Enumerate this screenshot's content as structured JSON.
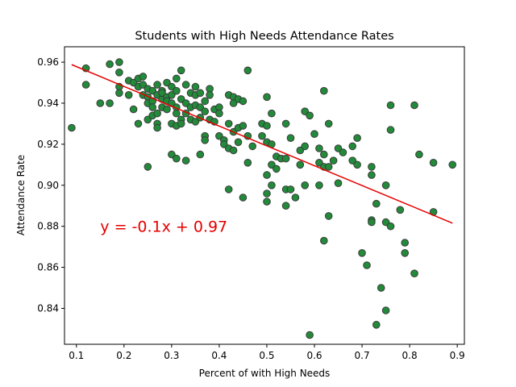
{
  "chart_data": {
    "type": "scatter",
    "title": "Students with High Needs Attendance Rates",
    "xlabel": "Percent of with High Needs",
    "ylabel": "Attendance Rate",
    "xlim": [
      0.075,
      0.915
    ],
    "ylim": [
      0.8225,
      0.9675
    ],
    "xticks": [
      0.1,
      0.2,
      0.3,
      0.4,
      0.5,
      0.6,
      0.7,
      0.8,
      0.9
    ],
    "xtick_labels": [
      "0.1",
      "0.2",
      "0.3",
      "0.4",
      "0.5",
      "0.6",
      "0.7",
      "0.8",
      "0.9"
    ],
    "yticks": [
      0.84,
      0.86,
      0.88,
      0.9,
      0.92,
      0.94,
      0.96
    ],
    "ytick_labels": [
      "0.84",
      "0.86",
      "0.88",
      "0.90",
      "0.92",
      "0.94",
      "0.96"
    ],
    "grid": false,
    "marker_color": "#228b3a",
    "marker_edge": "#3a3a3a",
    "trendline": {
      "slope": -0.0966,
      "intercept": 0.9675,
      "x_range": [
        0.09,
        0.89
      ],
      "color": "#e60000",
      "label": "y = -0.1x + 0.97",
      "label_x": 0.15,
      "label_y": 0.88
    },
    "points": [
      [
        0.09,
        0.928
      ],
      [
        0.12,
        0.957
      ],
      [
        0.12,
        0.949
      ],
      [
        0.15,
        0.94
      ],
      [
        0.17,
        0.94
      ],
      [
        0.17,
        0.959
      ],
      [
        0.19,
        0.96
      ],
      [
        0.19,
        0.948
      ],
      [
        0.19,
        0.955
      ],
      [
        0.19,
        0.945
      ],
      [
        0.21,
        0.951
      ],
      [
        0.21,
        0.944
      ],
      [
        0.22,
        0.937
      ],
      [
        0.22,
        0.95
      ],
      [
        0.23,
        0.948
      ],
      [
        0.23,
        0.952
      ],
      [
        0.23,
        0.93
      ],
      [
        0.24,
        0.953
      ],
      [
        0.24,
        0.944
      ],
      [
        0.24,
        0.949
      ],
      [
        0.25,
        0.947
      ],
      [
        0.25,
        0.943
      ],
      [
        0.25,
        0.94
      ],
      [
        0.25,
        0.932
      ],
      [
        0.25,
        0.909
      ],
      [
        0.26,
        0.946
      ],
      [
        0.26,
        0.941
      ],
      [
        0.26,
        0.938
      ],
      [
        0.26,
        0.934
      ],
      [
        0.27,
        0.949
      ],
      [
        0.27,
        0.944
      ],
      [
        0.27,
        0.935
      ],
      [
        0.27,
        0.93
      ],
      [
        0.27,
        0.928
      ],
      [
        0.28,
        0.946
      ],
      [
        0.28,
        0.942
      ],
      [
        0.28,
        0.938
      ],
      [
        0.28,
        0.945
      ],
      [
        0.29,
        0.95
      ],
      [
        0.29,
        0.943
      ],
      [
        0.29,
        0.937
      ],
      [
        0.29,
        0.941
      ],
      [
        0.3,
        0.948
      ],
      [
        0.3,
        0.944
      ],
      [
        0.3,
        0.94
      ],
      [
        0.3,
        0.93
      ],
      [
        0.3,
        0.915
      ],
      [
        0.31,
        0.952
      ],
      [
        0.31,
        0.946
      ],
      [
        0.31,
        0.938
      ],
      [
        0.31,
        0.935
      ],
      [
        0.31,
        0.929
      ],
      [
        0.31,
        0.913
      ],
      [
        0.32,
        0.956
      ],
      [
        0.32,
        0.942
      ],
      [
        0.32,
        0.932
      ],
      [
        0.32,
        0.93
      ],
      [
        0.33,
        0.949
      ],
      [
        0.33,
        0.94
      ],
      [
        0.33,
        0.935
      ],
      [
        0.33,
        0.912
      ],
      [
        0.34,
        0.945
      ],
      [
        0.34,
        0.938
      ],
      [
        0.34,
        0.932
      ],
      [
        0.35,
        0.948
      ],
      [
        0.35,
        0.944
      ],
      [
        0.35,
        0.939
      ],
      [
        0.35,
        0.931
      ],
      [
        0.36,
        0.945
      ],
      [
        0.36,
        0.938
      ],
      [
        0.36,
        0.933
      ],
      [
        0.36,
        0.915
      ],
      [
        0.37,
        0.941
      ],
      [
        0.37,
        0.936
      ],
      [
        0.37,
        0.924
      ],
      [
        0.37,
        0.922
      ],
      [
        0.38,
        0.947
      ],
      [
        0.38,
        0.944
      ],
      [
        0.38,
        0.932
      ],
      [
        0.39,
        0.937
      ],
      [
        0.39,
        0.931
      ],
      [
        0.4,
        0.938
      ],
      [
        0.4,
        0.935
      ],
      [
        0.4,
        0.924
      ],
      [
        0.41,
        0.922
      ],
      [
        0.41,
        0.92
      ],
      [
        0.42,
        0.944
      ],
      [
        0.42,
        0.93
      ],
      [
        0.42,
        0.918
      ],
      [
        0.42,
        0.898
      ],
      [
        0.43,
        0.943
      ],
      [
        0.43,
        0.94
      ],
      [
        0.43,
        0.926
      ],
      [
        0.43,
        0.917
      ],
      [
        0.44,
        0.942
      ],
      [
        0.44,
        0.928
      ],
      [
        0.44,
        0.921
      ],
      [
        0.45,
        0.941
      ],
      [
        0.45,
        0.929
      ],
      [
        0.45,
        0.894
      ],
      [
        0.46,
        0.956
      ],
      [
        0.46,
        0.924
      ],
      [
        0.46,
        0.911
      ],
      [
        0.47,
        0.919
      ],
      [
        0.49,
        0.93
      ],
      [
        0.49,
        0.924
      ],
      [
        0.5,
        0.943
      ],
      [
        0.5,
        0.929
      ],
      [
        0.5,
        0.921
      ],
      [
        0.5,
        0.905
      ],
      [
        0.5,
        0.896
      ],
      [
        0.5,
        0.892
      ],
      [
        0.51,
        0.935
      ],
      [
        0.51,
        0.92
      ],
      [
        0.51,
        0.91
      ],
      [
        0.51,
        0.9
      ],
      [
        0.52,
        0.914
      ],
      [
        0.52,
        0.908
      ],
      [
        0.53,
        0.913
      ],
      [
        0.54,
        0.93
      ],
      [
        0.54,
        0.913
      ],
      [
        0.54,
        0.898
      ],
      [
        0.54,
        0.89
      ],
      [
        0.55,
        0.923
      ],
      [
        0.55,
        0.898
      ],
      [
        0.56,
        0.894
      ],
      [
        0.57,
        0.91
      ],
      [
        0.57,
        0.917
      ],
      [
        0.58,
        0.919
      ],
      [
        0.58,
        0.9
      ],
      [
        0.58,
        0.936
      ],
      [
        0.59,
        0.934
      ],
      [
        0.59,
        0.827
      ],
      [
        0.6,
        0.925
      ],
      [
        0.61,
        0.918
      ],
      [
        0.61,
        0.911
      ],
      [
        0.61,
        0.9
      ],
      [
        0.62,
        0.946
      ],
      [
        0.62,
        0.915
      ],
      [
        0.62,
        0.909
      ],
      [
        0.62,
        0.873
      ],
      [
        0.63,
        0.93
      ],
      [
        0.63,
        0.909
      ],
      [
        0.63,
        0.885
      ],
      [
        0.64,
        0.912
      ],
      [
        0.65,
        0.918
      ],
      [
        0.65,
        0.901
      ],
      [
        0.66,
        0.916
      ],
      [
        0.68,
        0.919
      ],
      [
        0.68,
        0.912
      ],
      [
        0.69,
        0.91
      ],
      [
        0.69,
        0.923
      ],
      [
        0.7,
        0.867
      ],
      [
        0.71,
        0.861
      ],
      [
        0.72,
        0.905
      ],
      [
        0.72,
        0.909
      ],
      [
        0.72,
        0.883
      ],
      [
        0.72,
        0.882
      ],
      [
        0.73,
        0.832
      ],
      [
        0.73,
        0.891
      ],
      [
        0.74,
        0.85
      ],
      [
        0.75,
        0.9
      ],
      [
        0.75,
        0.882
      ],
      [
        0.75,
        0.839
      ],
      [
        0.76,
        0.88
      ],
      [
        0.76,
        0.939
      ],
      [
        0.76,
        0.927
      ],
      [
        0.78,
        0.888
      ],
      [
        0.79,
        0.872
      ],
      [
        0.79,
        0.867
      ],
      [
        0.81,
        0.939
      ],
      [
        0.81,
        0.857
      ],
      [
        0.82,
        0.915
      ],
      [
        0.85,
        0.887
      ],
      [
        0.85,
        0.911
      ],
      [
        0.89,
        0.91
      ]
    ]
  }
}
